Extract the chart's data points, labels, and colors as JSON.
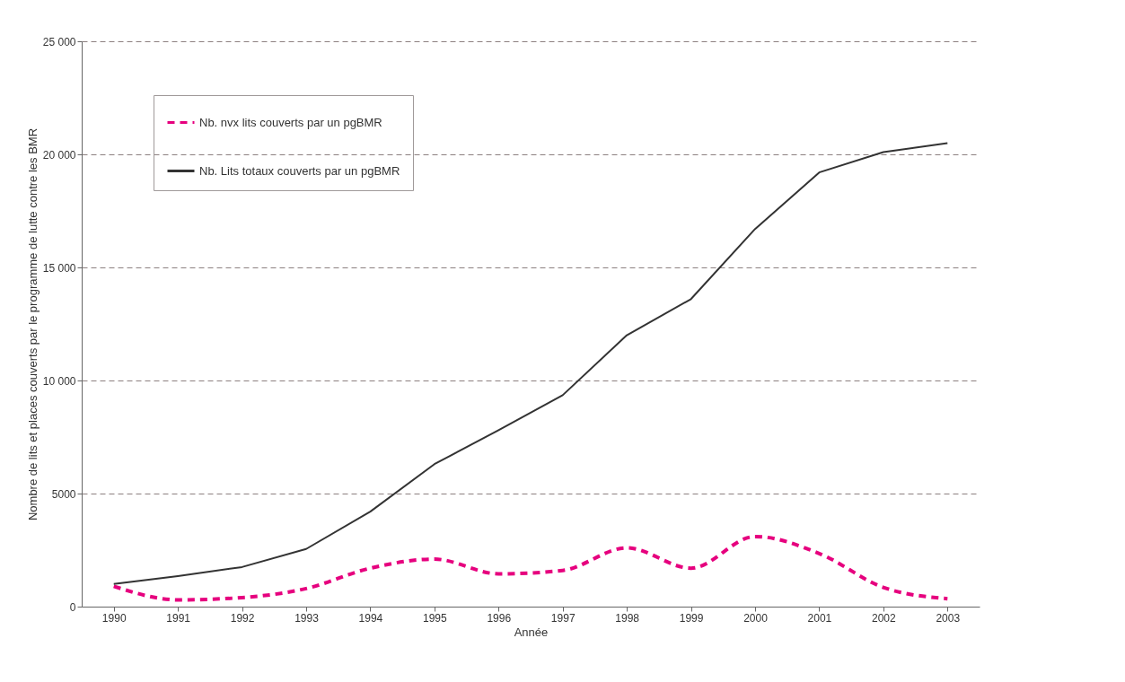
{
  "chart_data": {
    "type": "line",
    "xlabel": "Année",
    "ylabel": "Nombre de lits et places couverts par le programme de lutte contre les BMR",
    "categories": [
      "1990",
      "1991",
      "1992",
      "1993",
      "1994",
      "1995",
      "1996",
      "1997",
      "1998",
      "1999",
      "2000",
      "2001",
      "2002",
      "2003"
    ],
    "series": [
      {
        "name": "Nb. nvx lits couverts par un pgBMR",
        "color": "#e6007e",
        "line_style": "dashed",
        "values": [
          900,
          300,
          400,
          800,
          1700,
          2100,
          1450,
          1600,
          2600,
          1700,
          3100,
          2350,
          850,
          350
        ]
      },
      {
        "name": "Nb. Lits totaux couverts par un pgBMR",
        "color": "#333333",
        "line_style": "solid",
        "values": [
          1000,
          1350,
          1750,
          2550,
          4200,
          6300,
          7800,
          9350,
          12000,
          13600,
          16700,
          19200,
          20100,
          20500
        ]
      }
    ],
    "ylim": [
      0,
      25000
    ],
    "yticks": [
      0,
      {
        "value": 5000,
        "label": "5000"
      },
      {
        "value": 10000,
        "label": "10 000"
      },
      {
        "value": 15000,
        "label": "15 000"
      },
      {
        "value": 20000,
        "label": "20 000"
      },
      {
        "value": 25000,
        "label": "25 000"
      }
    ],
    "grid": "y",
    "legend": "top left"
  }
}
